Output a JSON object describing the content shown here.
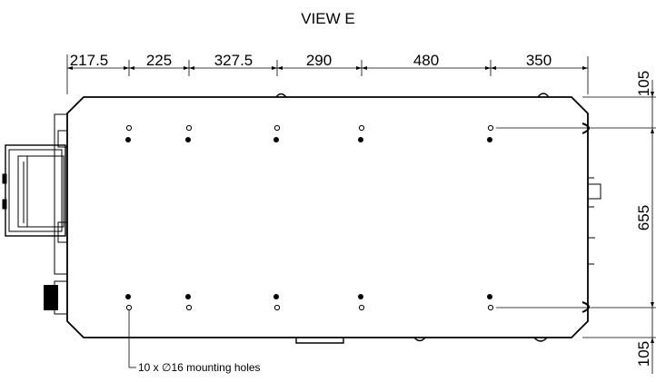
{
  "view_title": "VIEW E",
  "horizontal_dimensions": [
    "217.5",
    "225",
    "327.5",
    "290",
    "480",
    "350"
  ],
  "vertical_dimensions": [
    "105",
    "655",
    "105"
  ],
  "callout_text": "10 x ∅16 mounting holes"
}
